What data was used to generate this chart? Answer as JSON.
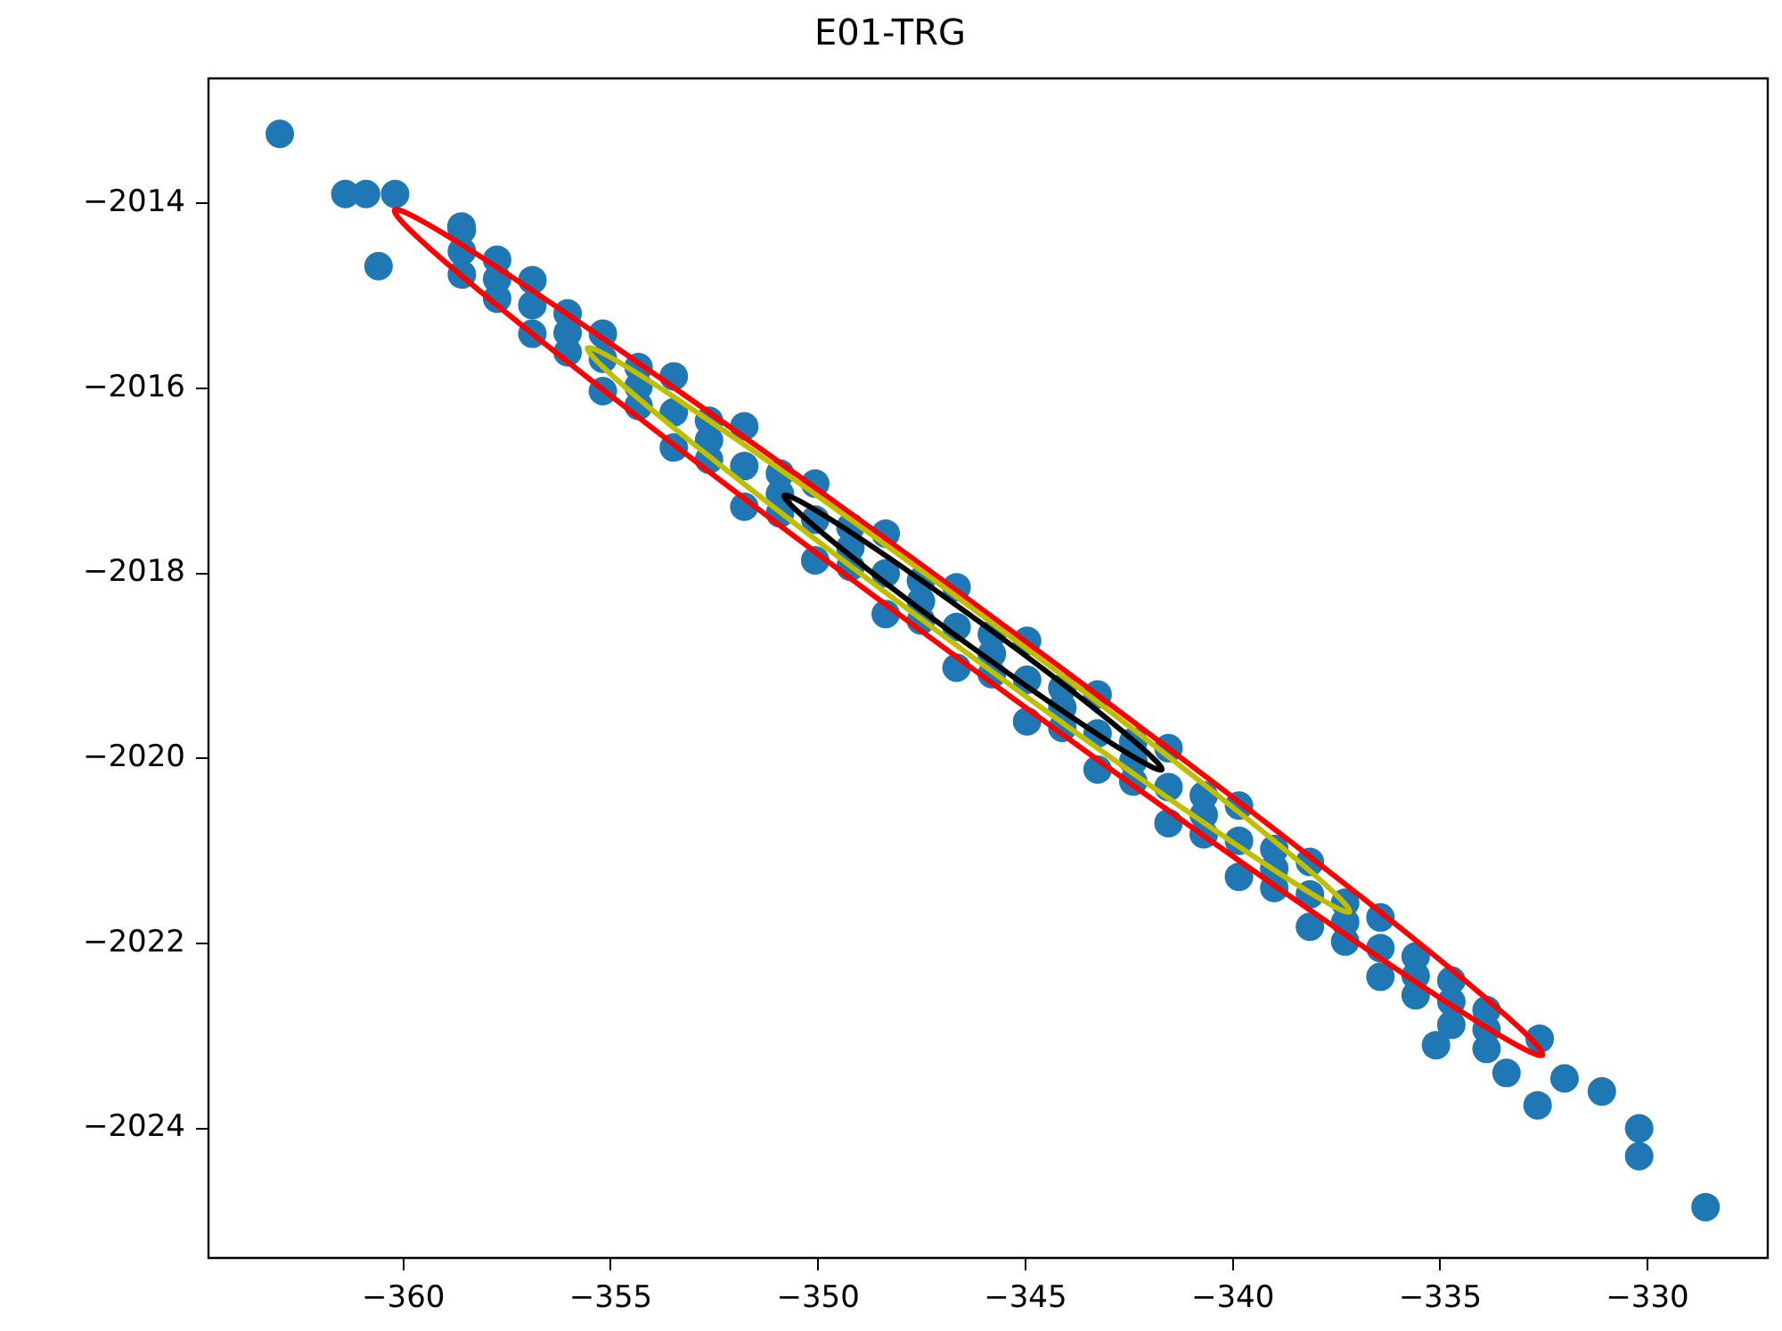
{
  "chart_data": {
    "type": "scatter",
    "title": "E01-TRG",
    "marker": "circle",
    "xlim": [
      -364.7,
      -327.1
    ],
    "ylim": [
      -2025.4,
      -2012.65
    ],
    "xticks": [
      {
        "value": -360,
        "label": "−360"
      },
      {
        "value": -355,
        "label": "−355"
      },
      {
        "value": -350,
        "label": "−350"
      },
      {
        "value": -345,
        "label": "−345"
      },
      {
        "value": -340,
        "label": "−340"
      },
      {
        "value": -335,
        "label": "−335"
      },
      {
        "value": -330,
        "label": "−330"
      }
    ],
    "yticks": [
      {
        "value": -2024,
        "label": "−2024"
      },
      {
        "value": -2022,
        "label": "−2022"
      },
      {
        "value": -2020,
        "label": "−2020"
      },
      {
        "value": -2018,
        "label": "−2018"
      },
      {
        "value": -2016,
        "label": "−2016"
      },
      {
        "value": -2014,
        "label": "−2014"
      }
    ],
    "series": [
      {
        "color": "#1f77b4",
        "x": [
          -362.98,
          -361.4,
          -360.9,
          -360.2,
          -360.6,
          -358.6,
          -332.6,
          -332.0,
          -332.65,
          -331.1,
          -330.2,
          -330.2,
          -328.6,
          -333.4,
          -335.1,
          -358.59,
          -358.59,
          -358.59,
          -356.89,
          -356.89,
          -356.89,
          -355.19,
          -355.19,
          -355.19,
          -353.48,
          -353.48,
          -353.48,
          -351.78,
          -351.78,
          -351.78,
          -350.07,
          -350.07,
          -350.07,
          -348.37,
          -348.37,
          -348.37,
          -346.66,
          -346.66,
          -346.66,
          -344.96,
          -344.96,
          -344.96,
          -343.26,
          -343.26,
          -343.26,
          -341.55,
          -341.55,
          -341.55,
          -339.85,
          -339.85,
          -339.85,
          -338.14,
          -338.14,
          -338.14,
          -336.44,
          -336.44,
          -336.44,
          -334.73,
          -334.73,
          -334.73,
          -357.74,
          -357.74,
          -356.04,
          -356.04,
          -354.33,
          -354.33,
          -352.63,
          -352.63,
          -350.92,
          -350.92,
          -349.22,
          -349.22,
          -347.52,
          -347.52,
          -345.81,
          -345.81,
          -344.11,
          -344.11,
          -342.4,
          -342.4,
          -340.7,
          -340.7,
          -339.0,
          -339.0,
          -337.29,
          -337.29,
          -335.59,
          -335.59,
          -333.88,
          -333.88,
          -357.74,
          -356.04,
          -354.33,
          -352.63,
          -350.92,
          -349.22,
          -347.52,
          -345.81,
          -344.11,
          -342.4,
          -340.7,
          -339.0,
          -337.29,
          -335.59,
          -333.88
        ],
        "values": [
          -2013.25,
          -2013.9,
          -2013.9,
          -2013.9,
          -2014.68,
          -2014.25,
          -2023.03,
          -2023.46,
          -2023.75,
          -2023.6,
          -2024.0,
          -2024.3,
          -2024.85,
          -2023.4,
          -2023.1,
          -2014.29,
          -2014.52,
          -2014.77,
          -2014.83,
          -2015.1,
          -2015.41,
          -2015.41,
          -2015.68,
          -2016.03,
          -2015.87,
          -2016.26,
          -2016.64,
          -2016.41,
          -2016.84,
          -2017.28,
          -2017.03,
          -2017.42,
          -2017.86,
          -2017.57,
          -2018.0,
          -2018.44,
          -2018.15,
          -2018.58,
          -2019.02,
          -2018.73,
          -2019.15,
          -2019.6,
          -2019.31,
          -2019.73,
          -2020.12,
          -2019.89,
          -2020.31,
          -2020.7,
          -2020.51,
          -2020.89,
          -2021.28,
          -2021.12,
          -2021.47,
          -2021.82,
          -2021.72,
          -2022.05,
          -2022.36,
          -2022.4,
          -2022.63,
          -2022.88,
          -2014.61,
          -2015.03,
          -2015.19,
          -2015.61,
          -2015.77,
          -2016.19,
          -2016.35,
          -2016.77,
          -2016.92,
          -2017.35,
          -2017.5,
          -2017.93,
          -2018.08,
          -2018.51,
          -2018.66,
          -2019.09,
          -2019.24,
          -2019.67,
          -2019.82,
          -2020.25,
          -2020.4,
          -2020.82,
          -2020.98,
          -2021.4,
          -2021.56,
          -2021.98,
          -2022.14,
          -2022.56,
          -2022.72,
          -2023.14,
          -2014.82,
          -2015.4,
          -2015.98,
          -2016.56,
          -2017.14,
          -2017.72,
          -2018.3,
          -2018.87,
          -2019.45,
          -2020.03,
          -2020.61,
          -2021.19,
          -2021.77,
          -2022.35,
          -2022.93
        ]
      }
    ]
  }
}
